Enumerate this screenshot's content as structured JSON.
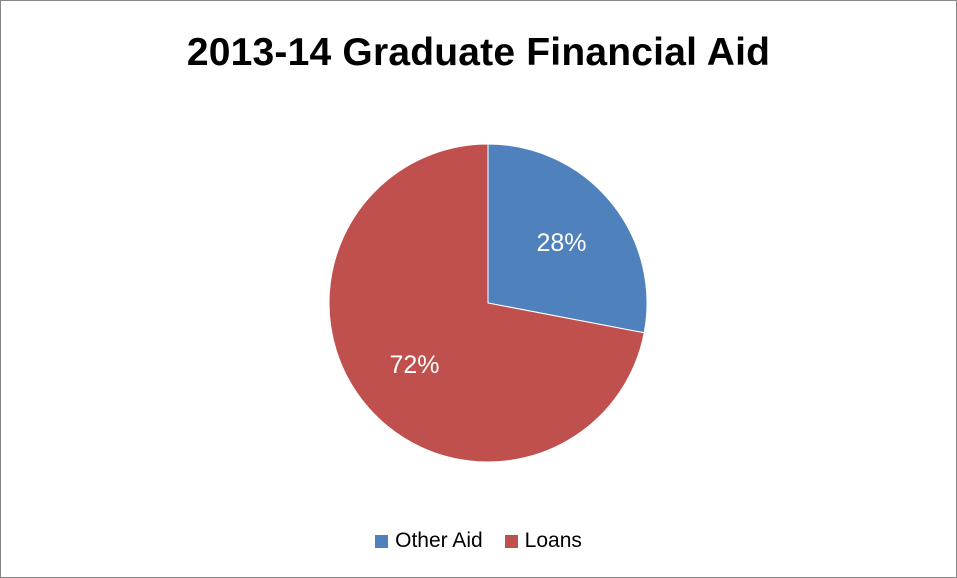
{
  "chart_data": {
    "type": "pie",
    "title": "2013-14 Graduate Financial Aid",
    "categories": [
      "Other Aid",
      "Loans"
    ],
    "values": [
      28,
      72
    ],
    "data_labels": [
      "28%",
      "72%"
    ],
    "colors": [
      "#4F81BD",
      "#C0504D"
    ],
    "legend_position": "bottom"
  }
}
